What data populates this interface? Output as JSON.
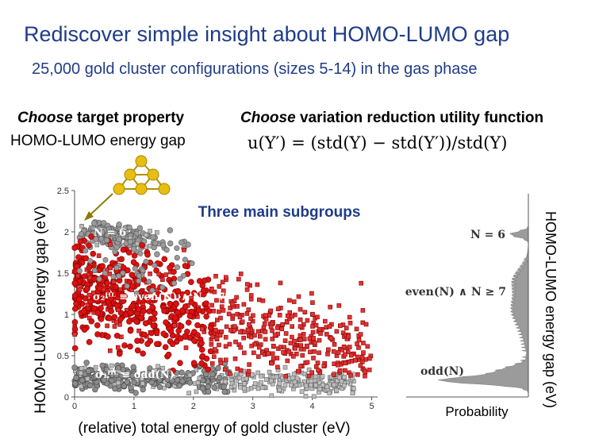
{
  "header": {
    "title": "Rediscover simple insight about HOMO-LUMO gap",
    "subtitle": "25,000 gold cluster configurations (sizes 5-14) in the gas phase"
  },
  "target": {
    "choose": "Choose",
    "head_rest": " target property",
    "value": "HOMO-LUMO energy gap"
  },
  "utility": {
    "choose": "Choose",
    "head_rest": " variation reduction utility function",
    "formula": "u(Y′) = (std(Y) − std(Y′))/std(Y)"
  },
  "chart_data": [
    {
      "type": "scatter",
      "title": "Three main subgroups",
      "xlabel": "(relative) total energy of gold cluster (eV)",
      "ylabel": "HOMO-LUMO energy gap (eV)",
      "xlim": [
        0,
        5.1
      ],
      "ylim": [
        0,
        2.5
      ],
      "xticks": [
        0,
        1,
        2,
        3,
        4,
        5
      ],
      "yticks": [
        0,
        0.5,
        1,
        1.5,
        2,
        2.5
      ],
      "grid": false,
      "series": [
        {
          "name": "",
          "color": "#808080",
          "approx_points": [
            [
              0.1,
              2.05
            ],
            [
              0.2,
              2.1
            ],
            [
              0.5,
              2.0
            ],
            [
              1.0,
              1.95
            ],
            [
              1.5,
              1.9
            ],
            [
              2.0,
              1.8
            ],
            [
              0.2,
              0.25
            ],
            [
              1.0,
              0.2
            ],
            [
              2.0,
              0.25
            ],
            [
              3.0,
              0.2
            ],
            [
              4.0,
              0.15
            ],
            [
              4.6,
              0.2
            ]
          ]
        },
        {
          "name": "",
          "color": "#dd1111",
          "approx_points": [
            [
              0.1,
              1.2
            ],
            [
              0.5,
              1.5
            ],
            [
              1.0,
              1.4
            ],
            [
              1.5,
              1.2
            ],
            [
              2.0,
              1.1
            ],
            [
              2.5,
              1.0
            ],
            [
              3.0,
              0.9
            ],
            [
              3.5,
              0.8
            ],
            [
              4.0,
              0.6
            ],
            [
              4.5,
              0.5
            ],
            [
              5.0,
              0.3
            ]
          ]
        }
      ],
      "annotations": {
        "n6": "N = 6",
        "sigma2": "σ₂ᴴᴸ ≡ even(N) ∧ N ≥ 7",
        "sigma1": "σ₁ᴴᴸ ≡ odd(N)"
      }
    },
    {
      "type": "area",
      "xlabel": "Probability",
      "ylabel": "HOMO-LUMO energy gap (eV)",
      "annotations": {
        "n6": "N = 6",
        "even": "even(N) ∧ N ≥ 7",
        "odd": "odd(N)"
      }
    }
  ]
}
